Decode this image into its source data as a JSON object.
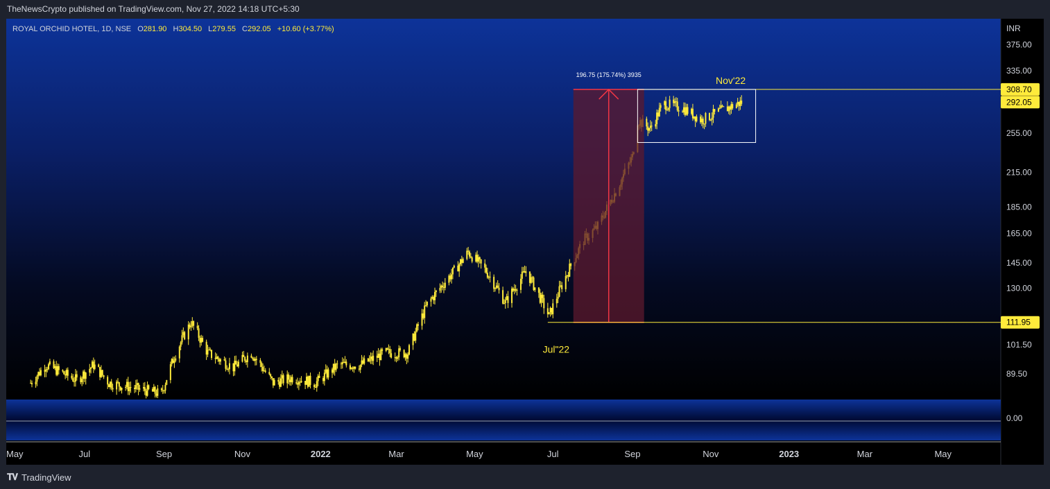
{
  "header": {
    "publisher_line": "TheNewsCrypto published on TradingView.com, Nov 27, 2022 14:18 UTC+5:30"
  },
  "footer": {
    "brand": "TradingView"
  },
  "colors": {
    "candle": "#ffeb3b",
    "axis_text": "#d1d4dc",
    "price_tag_bg": "#ffeb3b",
    "range_arrow": "#f23645",
    "range_fill": "#5c1a2e"
  },
  "chart_data": {
    "type": "candlestick",
    "symbol_line": {
      "name": "ROYAL ORCHID HOTEL, 1D, NSE",
      "o_label": "O",
      "o_value": "281.90",
      "h_label": "H",
      "h_value": "304.50",
      "l_label": "L",
      "l_value": "279.55",
      "c_label": "C",
      "c_value": "292.05",
      "change": "+10.60 (+3.77%)"
    },
    "currency": "INR",
    "y_scale": "log",
    "ylim": [
      80,
      420
    ],
    "y_ticks": [
      "375.00",
      "335.00",
      "255.00",
      "215.00",
      "185.00",
      "165.00",
      "145.00",
      "130.00",
      "101.50",
      "89.50"
    ],
    "y_tick_values": [
      375,
      335,
      255,
      215,
      185,
      165,
      145,
      130,
      101.5,
      89.5
    ],
    "price_tags": [
      {
        "label": "308.70",
        "value": 308.7
      },
      {
        "label": "292.05",
        "value": 292.05
      },
      {
        "label": "111.95",
        "value": 111.95
      }
    ],
    "x_ticks": [
      "May",
      "Jul",
      "Sep",
      "Nov",
      "2022",
      "Mar",
      "May",
      "Jul",
      "Sep",
      "Nov",
      "2023",
      "Mar",
      "May"
    ],
    "x_tick_dates": [
      "2021-05-01",
      "2021-07-01",
      "2021-09-01",
      "2021-11-01",
      "2022-01-01",
      "2022-03-01",
      "2022-05-01",
      "2022-07-01",
      "2022-09-01",
      "2022-11-01",
      "2023-01-01",
      "2023-03-01",
      "2023-05-01"
    ],
    "xlim": [
      "2021-05-01",
      "2023-06-15"
    ],
    "price_path": [
      {
        "date": "2021-05-20",
        "value": 86
      },
      {
        "date": "2021-06-01",
        "value": 93
      },
      {
        "date": "2021-06-25",
        "value": 87
      },
      {
        "date": "2021-07-08",
        "value": 93
      },
      {
        "date": "2021-07-20",
        "value": 86
      },
      {
        "date": "2021-08-10",
        "value": 84
      },
      {
        "date": "2021-08-30",
        "value": 82
      },
      {
        "date": "2021-09-10",
        "value": 98
      },
      {
        "date": "2021-09-22",
        "value": 112
      },
      {
        "date": "2021-10-05",
        "value": 98
      },
      {
        "date": "2021-10-25",
        "value": 92
      },
      {
        "date": "2021-11-08",
        "value": 98
      },
      {
        "date": "2021-11-25",
        "value": 86
      },
      {
        "date": "2021-12-10",
        "value": 88
      },
      {
        "date": "2021-12-28",
        "value": 86
      },
      {
        "date": "2022-01-15",
        "value": 93
      },
      {
        "date": "2022-02-01",
        "value": 93
      },
      {
        "date": "2022-02-20",
        "value": 98
      },
      {
        "date": "2022-03-10",
        "value": 98
      },
      {
        "date": "2022-03-25",
        "value": 121
      },
      {
        "date": "2022-04-15",
        "value": 140
      },
      {
        "date": "2022-04-26",
        "value": 152
      },
      {
        "date": "2022-05-10",
        "value": 140
      },
      {
        "date": "2022-05-25",
        "value": 122
      },
      {
        "date": "2022-06-10",
        "value": 140
      },
      {
        "date": "2022-06-28",
        "value": 115
      },
      {
        "date": "2022-07-10",
        "value": 135
      },
      {
        "date": "2022-07-25",
        "value": 160
      },
      {
        "date": "2022-08-05",
        "value": 170
      },
      {
        "date": "2022-08-20",
        "value": 200
      },
      {
        "date": "2022-09-01",
        "value": 230
      },
      {
        "date": "2022-09-05",
        "value": 270
      },
      {
        "date": "2022-09-15",
        "value": 260
      },
      {
        "date": "2022-09-25",
        "value": 290
      },
      {
        "date": "2022-10-10",
        "value": 285
      },
      {
        "date": "2022-10-25",
        "value": 270
      },
      {
        "date": "2022-11-10",
        "value": 282
      },
      {
        "date": "2022-11-25",
        "value": 292
      }
    ],
    "annotations": {
      "measure_label": "196.75 (175.74%) 3935",
      "jul_label": "Jul\"22",
      "nov_label": "Nov'22",
      "measure_from": {
        "date": "2022-07-31",
        "value": 111.95
      },
      "measure_to": {
        "date": "2022-08-27",
        "value": 308.7
      },
      "box": {
        "date_start": "2022-09-05",
        "date_end": "2022-12-06",
        "top": 308.7,
        "bottom": 245
      },
      "support_line": {
        "date_start": "2022-06-27",
        "value": 111.95
      },
      "resistance_line": {
        "date_start": "2022-09-05",
        "value": 308.7
      }
    },
    "lower_pane": {
      "tick": "0.00",
      "tick_value": 0
    }
  }
}
